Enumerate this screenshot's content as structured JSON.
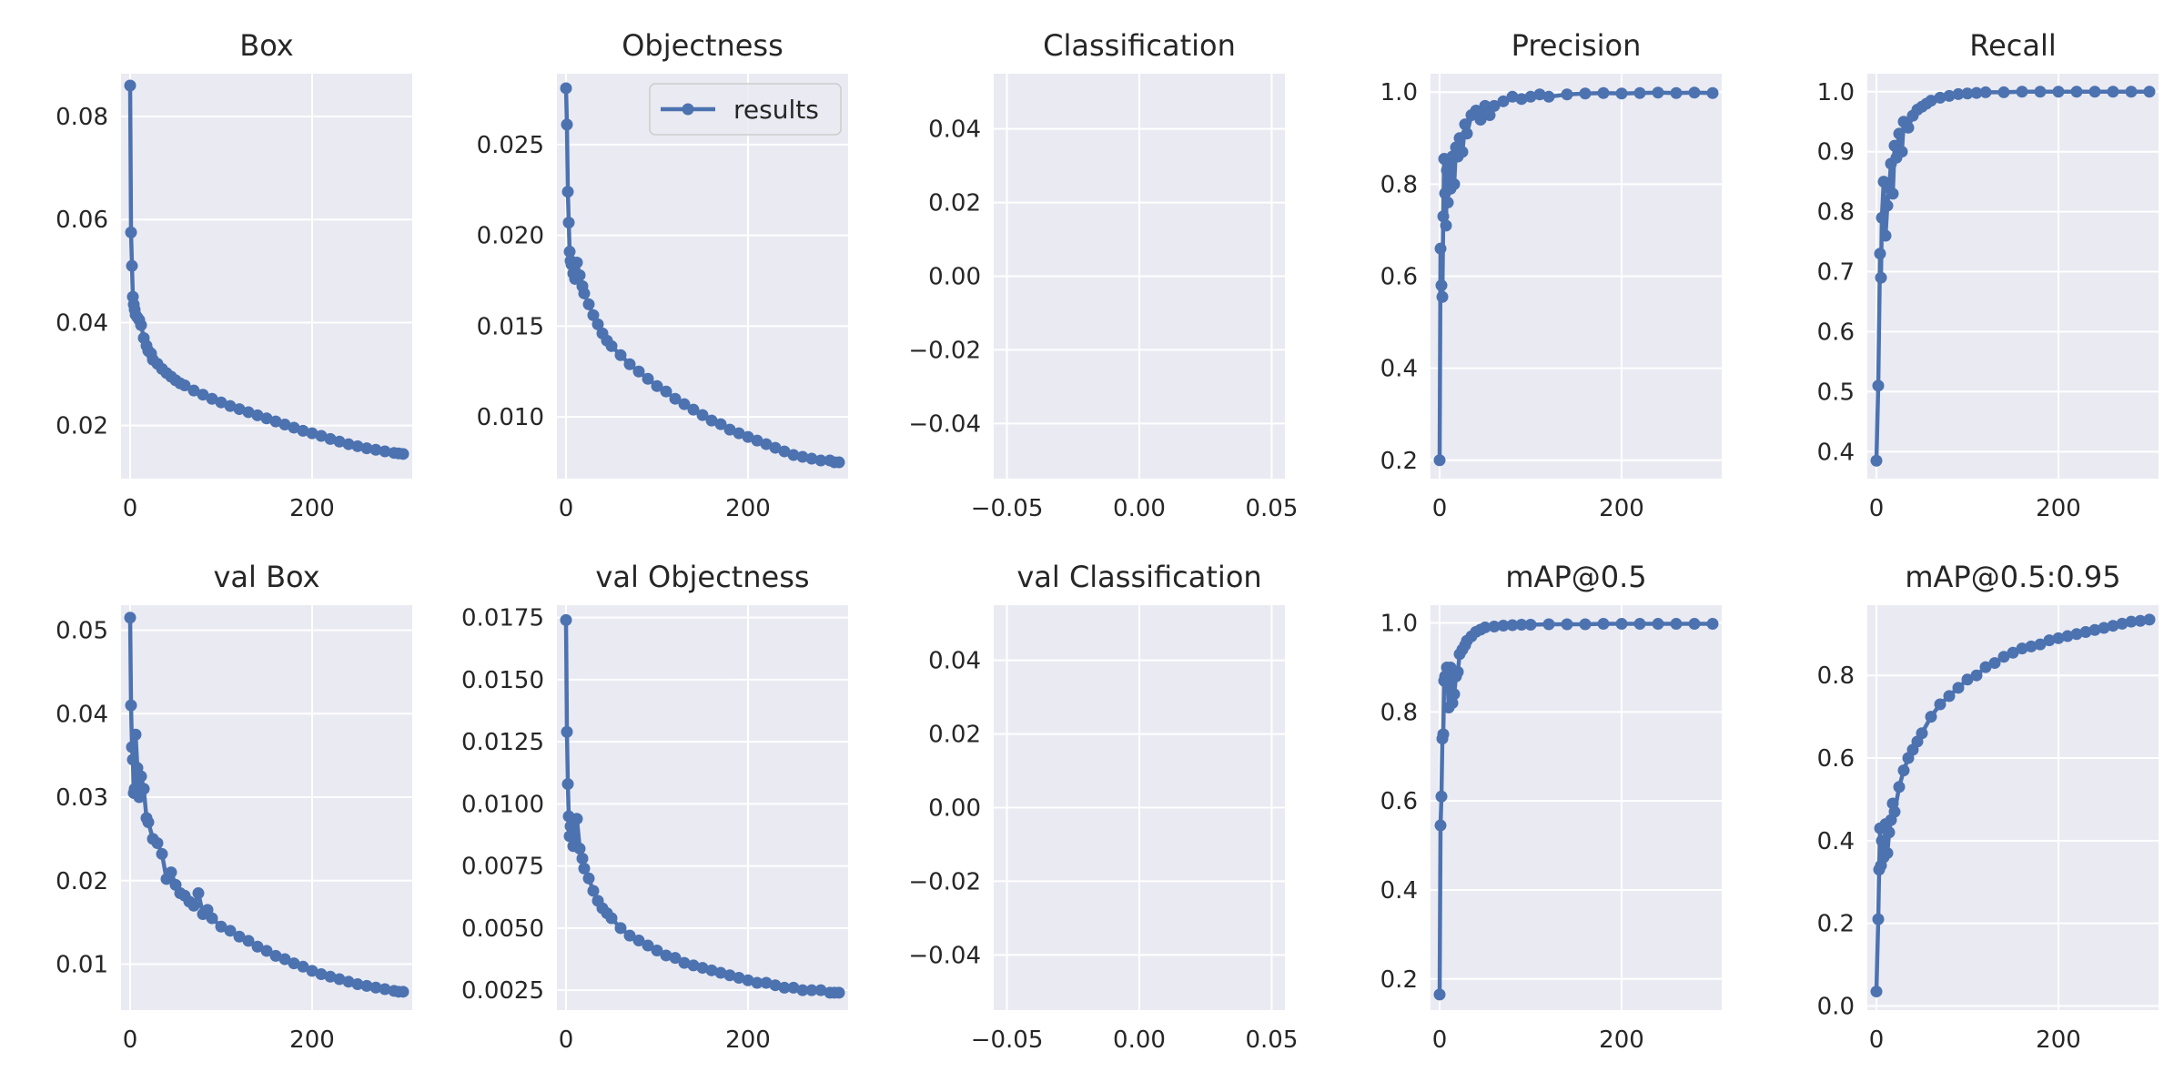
{
  "style": {
    "line_color": "#4c72b0",
    "plot_bg": "#eaeaf2",
    "grid_color": "#ffffff"
  },
  "legend": {
    "label": "results",
    "position": "upper-right",
    "panel": 1
  },
  "chart_data": [
    {
      "type": "line",
      "title": "Box",
      "xlim": [
        -10,
        310
      ],
      "ylim": [
        0.0097,
        0.0883
      ],
      "xticks": [
        0,
        200
      ],
      "xticklabels": [
        "0",
        "200"
      ],
      "yticks": [
        0.02,
        0.04,
        0.06,
        0.08
      ],
      "yticklabels": [
        "0.02",
        "0.04",
        "0.06",
        "0.08"
      ],
      "series": [
        {
          "name": "results",
          "x": [
            0,
            1,
            2,
            3,
            4,
            5,
            6,
            8,
            10,
            12,
            15,
            18,
            20,
            23,
            25,
            30,
            35,
            40,
            45,
            50,
            55,
            60,
            70,
            80,
            90,
            100,
            110,
            120,
            130,
            140,
            150,
            160,
            170,
            180,
            190,
            200,
            210,
            220,
            230,
            240,
            250,
            260,
            270,
            280,
            290,
            295,
            300
          ],
          "y": [
            0.086,
            0.0575,
            0.051,
            0.045,
            0.0435,
            0.0425,
            0.0415,
            0.041,
            0.0405,
            0.0395,
            0.037,
            0.0355,
            0.0345,
            0.034,
            0.0328,
            0.032,
            0.031,
            0.0302,
            0.0295,
            0.0288,
            0.0282,
            0.0278,
            0.0268,
            0.026,
            0.0252,
            0.0245,
            0.0238,
            0.0232,
            0.0226,
            0.022,
            0.0214,
            0.0208,
            0.0202,
            0.0196,
            0.019,
            0.0185,
            0.018,
            0.0174,
            0.0169,
            0.0164,
            0.016,
            0.0156,
            0.0153,
            0.015,
            0.0147,
            0.0146,
            0.0145
          ]
        }
      ]
    },
    {
      "type": "line",
      "title": "Objectness",
      "xlim": [
        -10,
        310
      ],
      "ylim": [
        0.0066,
        0.0289
      ],
      "xticks": [
        0,
        200
      ],
      "xticklabels": [
        "0",
        "200"
      ],
      "yticks": [
        0.01,
        0.015,
        0.02,
        0.025
      ],
      "yticklabels": [
        "0.010",
        "0.015",
        "0.020",
        "0.025"
      ],
      "series": [
        {
          "name": "results",
          "x": [
            0,
            1,
            2,
            3,
            4,
            5,
            6,
            8,
            10,
            12,
            15,
            18,
            20,
            25,
            30,
            35,
            40,
            45,
            50,
            60,
            70,
            80,
            90,
            100,
            110,
            120,
            130,
            140,
            150,
            160,
            170,
            180,
            190,
            200,
            210,
            220,
            230,
            240,
            250,
            260,
            270,
            280,
            290,
            295,
            300
          ],
          "y": [
            0.0281,
            0.0261,
            0.0224,
            0.0207,
            0.0191,
            0.0186,
            0.0184,
            0.0179,
            0.0176,
            0.0185,
            0.0178,
            0.0172,
            0.0168,
            0.0162,
            0.0156,
            0.0151,
            0.0146,
            0.0142,
            0.0139,
            0.0134,
            0.0129,
            0.0125,
            0.0121,
            0.0117,
            0.0114,
            0.011,
            0.0107,
            0.0104,
            0.0101,
            0.0098,
            0.0096,
            0.0093,
            0.0091,
            0.0089,
            0.0087,
            0.0085,
            0.0083,
            0.0081,
            0.0079,
            0.0078,
            0.0077,
            0.0076,
            0.0076,
            0.0075,
            0.0075
          ]
        }
      ]
    },
    {
      "type": "line",
      "title": "Classification",
      "xlim": [
        -0.055,
        0.055
      ],
      "ylim": [
        -0.055,
        0.055
      ],
      "xticks": [
        -0.05,
        0,
        0.05
      ],
      "xticklabels": [
        "−0.05",
        "0.00",
        "0.05"
      ],
      "yticks": [
        -0.04,
        -0.02,
        0,
        0.02,
        0.04
      ],
      "yticklabels": [
        "−0.04",
        "−0.02",
        "0.00",
        "0.02",
        "0.04"
      ],
      "series": []
    },
    {
      "type": "line",
      "title": "Precision",
      "xlim": [
        -10,
        310
      ],
      "ylim": [
        0.16,
        1.04
      ],
      "xticks": [
        0,
        200
      ],
      "xticklabels": [
        "0",
        "200"
      ],
      "yticks": [
        0.2,
        0.4,
        0.6,
        0.8,
        1.0
      ],
      "yticklabels": [
        "0.2",
        "0.4",
        "0.6",
        "0.8",
        "1.0"
      ],
      "series": [
        {
          "name": "results",
          "x": [
            0,
            1,
            2,
            3,
            4,
            5,
            6,
            7,
            8,
            9,
            10,
            12,
            14,
            16,
            18,
            20,
            22,
            25,
            28,
            30,
            35,
            40,
            45,
            50,
            55,
            60,
            70,
            80,
            90,
            100,
            110,
            120,
            140,
            160,
            180,
            200,
            220,
            240,
            260,
            280,
            300
          ],
          "y": [
            0.2,
            0.66,
            0.58,
            0.555,
            0.73,
            0.855,
            0.78,
            0.71,
            0.83,
            0.76,
            0.84,
            0.79,
            0.86,
            0.8,
            0.88,
            0.86,
            0.9,
            0.87,
            0.93,
            0.91,
            0.95,
            0.96,
            0.94,
            0.97,
            0.95,
            0.97,
            0.98,
            0.99,
            0.985,
            0.99,
            0.995,
            0.99,
            0.995,
            0.997,
            0.998,
            0.997,
            0.998,
            0.999,
            0.998,
            0.999,
            0.998
          ]
        }
      ]
    },
    {
      "type": "line",
      "title": "Recall",
      "xlim": [
        -10,
        310
      ],
      "ylim": [
        0.355,
        1.03
      ],
      "xticks": [
        0,
        200
      ],
      "xticklabels": [
        "0",
        "200"
      ],
      "yticks": [
        0.4,
        0.5,
        0.6,
        0.7,
        0.8,
        0.9,
        1.0
      ],
      "yticklabels": [
        "0.4",
        "0.5",
        "0.6",
        "0.7",
        "0.8",
        "0.9",
        "1.0"
      ],
      "series": [
        {
          "name": "results",
          "x": [
            0,
            2,
            4,
            5,
            6,
            8,
            10,
            12,
            14,
            16,
            18,
            20,
            22,
            25,
            28,
            30,
            35,
            40,
            45,
            50,
            55,
            60,
            70,
            80,
            90,
            100,
            110,
            120,
            140,
            160,
            180,
            200,
            220,
            240,
            260,
            280,
            300
          ],
          "y": [
            0.385,
            0.51,
            0.73,
            0.69,
            0.79,
            0.85,
            0.76,
            0.81,
            0.84,
            0.88,
            0.83,
            0.91,
            0.89,
            0.93,
            0.9,
            0.95,
            0.94,
            0.96,
            0.97,
            0.975,
            0.98,
            0.985,
            0.99,
            0.993,
            0.996,
            0.997,
            0.998,
            0.999,
            0.999,
            1.0,
            1.0,
            1.0,
            1.0,
            1.0,
            1.0,
            1.0,
            1.0
          ]
        }
      ]
    },
    {
      "type": "line",
      "title": "val Box",
      "xlim": [
        -10,
        310
      ],
      "ylim": [
        0.0045,
        0.053
      ],
      "xticks": [
        0,
        200
      ],
      "xticklabels": [
        "0",
        "200"
      ],
      "yticks": [
        0.01,
        0.02,
        0.03,
        0.04,
        0.05
      ],
      "yticklabels": [
        "0.01",
        "0.02",
        "0.03",
        "0.04",
        "0.05"
      ],
      "series": [
        {
          "name": "results",
          "x": [
            0,
            1,
            2,
            3,
            4,
            5,
            6,
            8,
            10,
            12,
            15,
            18,
            20,
            25,
            30,
            35,
            40,
            45,
            50,
            55,
            60,
            65,
            70,
            75,
            80,
            85,
            90,
            100,
            110,
            120,
            130,
            140,
            150,
            160,
            170,
            180,
            190,
            200,
            210,
            220,
            230,
            240,
            250,
            260,
            270,
            280,
            290,
            295,
            300
          ],
          "y": [
            0.0515,
            0.041,
            0.036,
            0.0345,
            0.0305,
            0.031,
            0.0375,
            0.0335,
            0.03,
            0.0325,
            0.031,
            0.0275,
            0.027,
            0.025,
            0.0245,
            0.0232,
            0.0202,
            0.021,
            0.0195,
            0.0185,
            0.0182,
            0.0175,
            0.017,
            0.0185,
            0.016,
            0.0165,
            0.0155,
            0.0145,
            0.014,
            0.0133,
            0.0128,
            0.0121,
            0.0116,
            0.011,
            0.0106,
            0.0101,
            0.0097,
            0.0092,
            0.0088,
            0.0085,
            0.0082,
            0.0079,
            0.0076,
            0.0074,
            0.0072,
            0.007,
            0.0068,
            0.0067,
            0.0067
          ]
        }
      ]
    },
    {
      "type": "line",
      "title": "val Objectness",
      "xlim": [
        -10,
        310
      ],
      "ylim": [
        0.0017,
        0.018
      ],
      "xticks": [
        0,
        200
      ],
      "xticklabels": [
        "0",
        "200"
      ],
      "yticks": [
        0.0025,
        0.005,
        0.0075,
        0.01,
        0.0125,
        0.015,
        0.0175
      ],
      "yticklabels": [
        "0.0025",
        "0.0050",
        "0.0075",
        "0.0100",
        "0.0125",
        "0.0150",
        "0.0175"
      ],
      "series": [
        {
          "name": "results",
          "x": [
            0,
            1,
            2,
            3,
            4,
            5,
            6,
            8,
            10,
            12,
            15,
            18,
            20,
            25,
            30,
            35,
            40,
            45,
            50,
            60,
            70,
            80,
            90,
            100,
            110,
            120,
            130,
            140,
            150,
            160,
            170,
            180,
            190,
            200,
            210,
            220,
            230,
            240,
            250,
            260,
            270,
            280,
            290,
            295,
            300
          ],
          "y": [
            0.0174,
            0.0129,
            0.0108,
            0.0095,
            0.0087,
            0.0091,
            0.0094,
            0.0083,
            0.0085,
            0.0094,
            0.0082,
            0.0078,
            0.0074,
            0.007,
            0.0065,
            0.0061,
            0.0058,
            0.0056,
            0.0054,
            0.005,
            0.0047,
            0.0045,
            0.0043,
            0.0041,
            0.0039,
            0.0038,
            0.0036,
            0.0035,
            0.0034,
            0.0033,
            0.0032,
            0.0031,
            0.003,
            0.0029,
            0.0028,
            0.0028,
            0.0027,
            0.0026,
            0.0026,
            0.0025,
            0.0025,
            0.0025,
            0.0024,
            0.0024,
            0.0024
          ]
        }
      ]
    },
    {
      "type": "line",
      "title": "val Classification",
      "xlim": [
        -0.055,
        0.055
      ],
      "ylim": [
        -0.055,
        0.055
      ],
      "xticks": [
        -0.05,
        0,
        0.05
      ],
      "xticklabels": [
        "−0.05",
        "0.00",
        "0.05"
      ],
      "yticks": [
        -0.04,
        -0.02,
        0,
        0.02,
        0.04
      ],
      "yticklabels": [
        "−0.04",
        "−0.02",
        "0.00",
        "0.02",
        "0.04"
      ],
      "series": []
    },
    {
      "type": "line",
      "title": "mAP@0.5",
      "xlim": [
        -10,
        310
      ],
      "ylim": [
        0.13,
        1.04
      ],
      "xticks": [
        0,
        200
      ],
      "xticklabels": [
        "0",
        "200"
      ],
      "yticks": [
        0.2,
        0.4,
        0.6,
        0.8,
        1.0
      ],
      "yticklabels": [
        "0.2",
        "0.4",
        "0.6",
        "0.8",
        "1.0"
      ],
      "series": [
        {
          "name": "results",
          "x": [
            0,
            1,
            2,
            3,
            4,
            5,
            6,
            8,
            10,
            12,
            14,
            16,
            18,
            20,
            22,
            25,
            28,
            30,
            35,
            40,
            45,
            50,
            60,
            70,
            80,
            90,
            100,
            120,
            140,
            160,
            180,
            200,
            220,
            240,
            260,
            280,
            300
          ],
          "y": [
            0.165,
            0.545,
            0.61,
            0.74,
            0.75,
            0.87,
            0.88,
            0.9,
            0.81,
            0.9,
            0.82,
            0.84,
            0.88,
            0.89,
            0.93,
            0.94,
            0.95,
            0.96,
            0.97,
            0.98,
            0.985,
            0.99,
            0.992,
            0.994,
            0.995,
            0.996,
            0.996,
            0.997,
            0.997,
            0.997,
            0.998,
            0.998,
            0.998,
            0.998,
            0.998,
            0.998,
            0.998
          ]
        }
      ]
    },
    {
      "type": "line",
      "title": "mAP@0.5:0.95",
      "xlim": [
        -10,
        310
      ],
      "ylim": [
        -0.01,
        0.97
      ],
      "xticks": [
        0,
        200
      ],
      "xticklabels": [
        "0",
        "200"
      ],
      "yticks": [
        0.0,
        0.2,
        0.4,
        0.6,
        0.8
      ],
      "yticklabels": [
        "0.0",
        "0.2",
        "0.4",
        "0.6",
        "0.8"
      ],
      "series": [
        {
          "name": "results",
          "x": [
            0,
            2,
            3,
            4,
            5,
            6,
            8,
            10,
            12,
            14,
            16,
            18,
            20,
            25,
            30,
            35,
            40,
            45,
            50,
            60,
            70,
            80,
            90,
            100,
            110,
            120,
            130,
            140,
            150,
            160,
            170,
            180,
            190,
            200,
            210,
            220,
            230,
            240,
            250,
            260,
            270,
            280,
            290,
            300
          ],
          "y": [
            0.035,
            0.21,
            0.33,
            0.43,
            0.34,
            0.4,
            0.36,
            0.44,
            0.37,
            0.42,
            0.45,
            0.49,
            0.47,
            0.53,
            0.57,
            0.6,
            0.62,
            0.64,
            0.66,
            0.7,
            0.73,
            0.75,
            0.77,
            0.79,
            0.8,
            0.82,
            0.83,
            0.845,
            0.855,
            0.865,
            0.87,
            0.875,
            0.885,
            0.89,
            0.895,
            0.9,
            0.905,
            0.91,
            0.915,
            0.92,
            0.925,
            0.93,
            0.932,
            0.935
          ]
        }
      ]
    }
  ]
}
